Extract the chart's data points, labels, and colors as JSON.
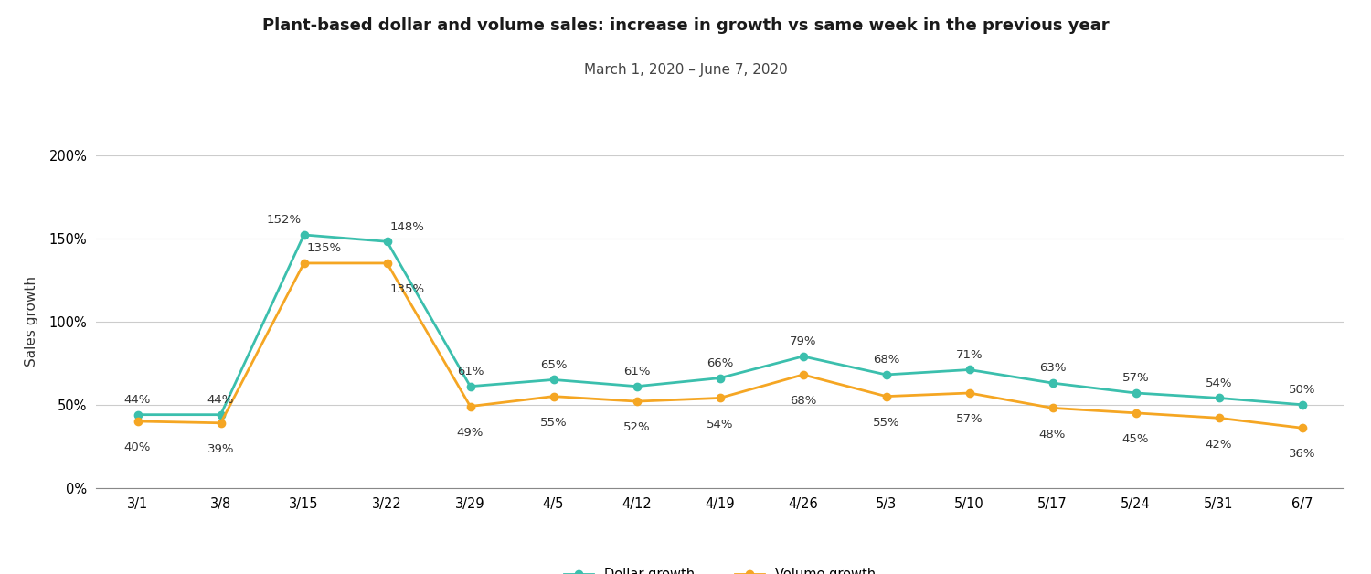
{
  "title": "Plant-based dollar and volume sales: increase in growth vs same week in the previous year",
  "subtitle": "March 1, 2020 – June 7, 2020",
  "xlabel": "",
  "ylabel": "Sales growth",
  "x_labels": [
    "3/1",
    "3/8",
    "3/15",
    "3/22",
    "3/29",
    "4/5",
    "4/12",
    "4/19",
    "4/26",
    "5/3",
    "5/10",
    "5/17",
    "5/24",
    "5/31",
    "6/7"
  ],
  "dollar_growth": [
    44,
    44,
    152,
    148,
    61,
    65,
    61,
    66,
    79,
    68,
    71,
    63,
    57,
    54,
    50
  ],
  "volume_growth": [
    40,
    39,
    135,
    135,
    49,
    55,
    52,
    54,
    68,
    55,
    57,
    48,
    45,
    42,
    36
  ],
  "dollar_color": "#3bbfad",
  "volume_color": "#f5a623",
  "dollar_label": "Dollar growth",
  "volume_label": "Volume growth",
  "ylim": [
    0,
    200
  ],
  "yticks": [
    0,
    50,
    100,
    150,
    200
  ],
  "bg_color": "#ffffff",
  "grid_color": "#cccccc",
  "title_fontsize": 13,
  "subtitle_fontsize": 11,
  "ylabel_fontsize": 11,
  "annotation_fontsize": 9.5
}
